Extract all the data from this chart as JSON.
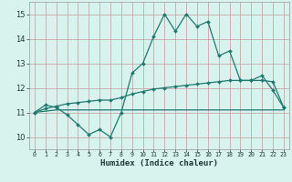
{
  "xlabel": "Humidex (Indice chaleur)",
  "ylabel": "",
  "xlim": [
    -0.5,
    23.5
  ],
  "ylim": [
    9.5,
    15.5
  ],
  "xticks": [
    0,
    1,
    2,
    3,
    4,
    5,
    6,
    7,
    8,
    9,
    10,
    11,
    12,
    13,
    14,
    15,
    16,
    17,
    18,
    19,
    20,
    21,
    22,
    23
  ],
  "yticks": [
    10,
    11,
    12,
    13,
    14,
    15
  ],
  "bg_color": "#d8f2ee",
  "line_color": "#1e7a6e",
  "grid_color": "#c8a8a8",
  "line1_x": [
    0,
    1,
    2,
    3,
    4,
    5,
    6,
    7,
    8,
    9,
    10,
    11,
    12,
    13,
    14,
    15,
    16,
    17,
    18,
    19,
    20,
    21,
    22,
    23
  ],
  "line1_y": [
    11.0,
    11.3,
    11.2,
    10.9,
    10.5,
    10.1,
    10.3,
    10.0,
    11.0,
    12.6,
    13.0,
    14.1,
    15.0,
    14.3,
    15.0,
    14.5,
    14.7,
    13.3,
    13.5,
    12.3,
    12.3,
    12.5,
    11.9,
    11.2
  ],
  "line2_x": [
    0,
    1,
    2,
    3,
    4,
    5,
    6,
    7,
    8,
    9,
    10,
    11,
    12,
    13,
    14,
    15,
    16,
    17,
    18,
    19,
    20,
    21,
    22,
    23
  ],
  "line2_y": [
    11.0,
    11.15,
    11.25,
    11.35,
    11.4,
    11.45,
    11.5,
    11.5,
    11.6,
    11.75,
    11.85,
    11.95,
    12.0,
    12.05,
    12.1,
    12.15,
    12.2,
    12.25,
    12.3,
    12.3,
    12.3,
    12.3,
    12.25,
    11.2
  ],
  "line3_x": [
    0,
    1,
    2,
    3,
    4,
    5,
    6,
    7,
    8,
    9,
    10,
    11,
    12,
    13,
    14,
    15,
    16,
    17,
    18,
    19,
    20,
    21,
    22,
    23
  ],
  "line3_y": [
    11.0,
    11.05,
    11.1,
    11.1,
    11.1,
    11.1,
    11.1,
    11.1,
    11.1,
    11.1,
    11.1,
    11.1,
    11.1,
    11.1,
    11.1,
    11.1,
    11.1,
    11.1,
    11.1,
    11.1,
    11.1,
    11.1,
    11.1,
    11.1
  ]
}
